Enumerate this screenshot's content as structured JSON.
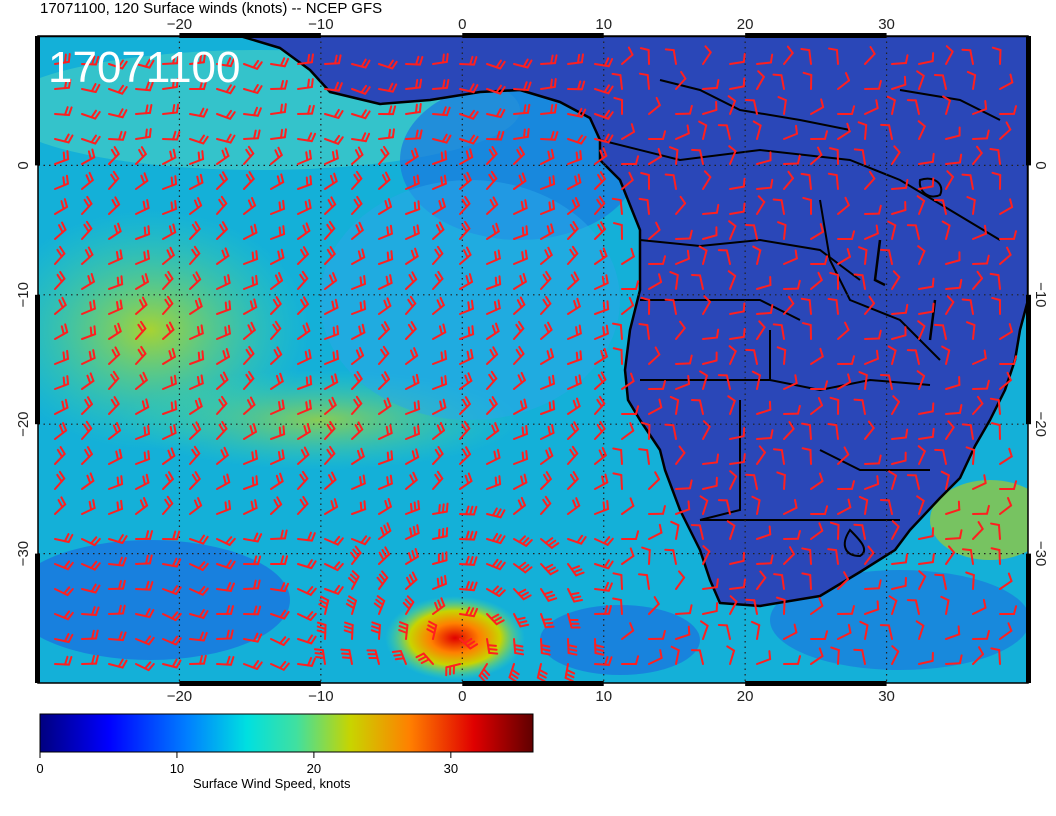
{
  "header": {
    "title": "17071100, 120 Surface winds (knots) -- NCEP GFS",
    "stamp": "17071100"
  },
  "map": {
    "projection": "cylindrical",
    "lon_range": [
      -30,
      40
    ],
    "lat_range": [
      -40,
      10
    ],
    "lon_ticks": [
      {
        "value": -20,
        "label": "−20"
      },
      {
        "value": -10,
        "label": "−10"
      },
      {
        "value": 0,
        "label": "0"
      },
      {
        "value": 10,
        "label": "10"
      },
      {
        "value": 20,
        "label": "20"
      },
      {
        "value": 30,
        "label": "30"
      }
    ],
    "lat_ticks": [
      {
        "value": 0,
        "label": "0"
      },
      {
        "value": -10,
        "label": "−10"
      },
      {
        "value": -20,
        "label": "−20"
      },
      {
        "value": -30,
        "label": "−30"
      }
    ],
    "gridlines": "dotted",
    "land_color": "#2a47b8",
    "coastline_color": "#000000",
    "barb_color": "#ff1f1f",
    "cyclone_center": {
      "lon": -0.5,
      "lat": -37
    }
  },
  "colorbar": {
    "label": "Surface Wind Speed, knots",
    "ticks": [
      {
        "value": 0,
        "label": "0"
      },
      {
        "value": 10,
        "label": "10"
      },
      {
        "value": 20,
        "label": "20"
      },
      {
        "value": 30,
        "label": "30"
      }
    ],
    "max": 36,
    "colors": [
      "#00007f",
      "#0000ff",
      "#0080ff",
      "#00e0e0",
      "#40e0a0",
      "#c8d400",
      "#ff8000",
      "#e00000",
      "#600000"
    ]
  }
}
